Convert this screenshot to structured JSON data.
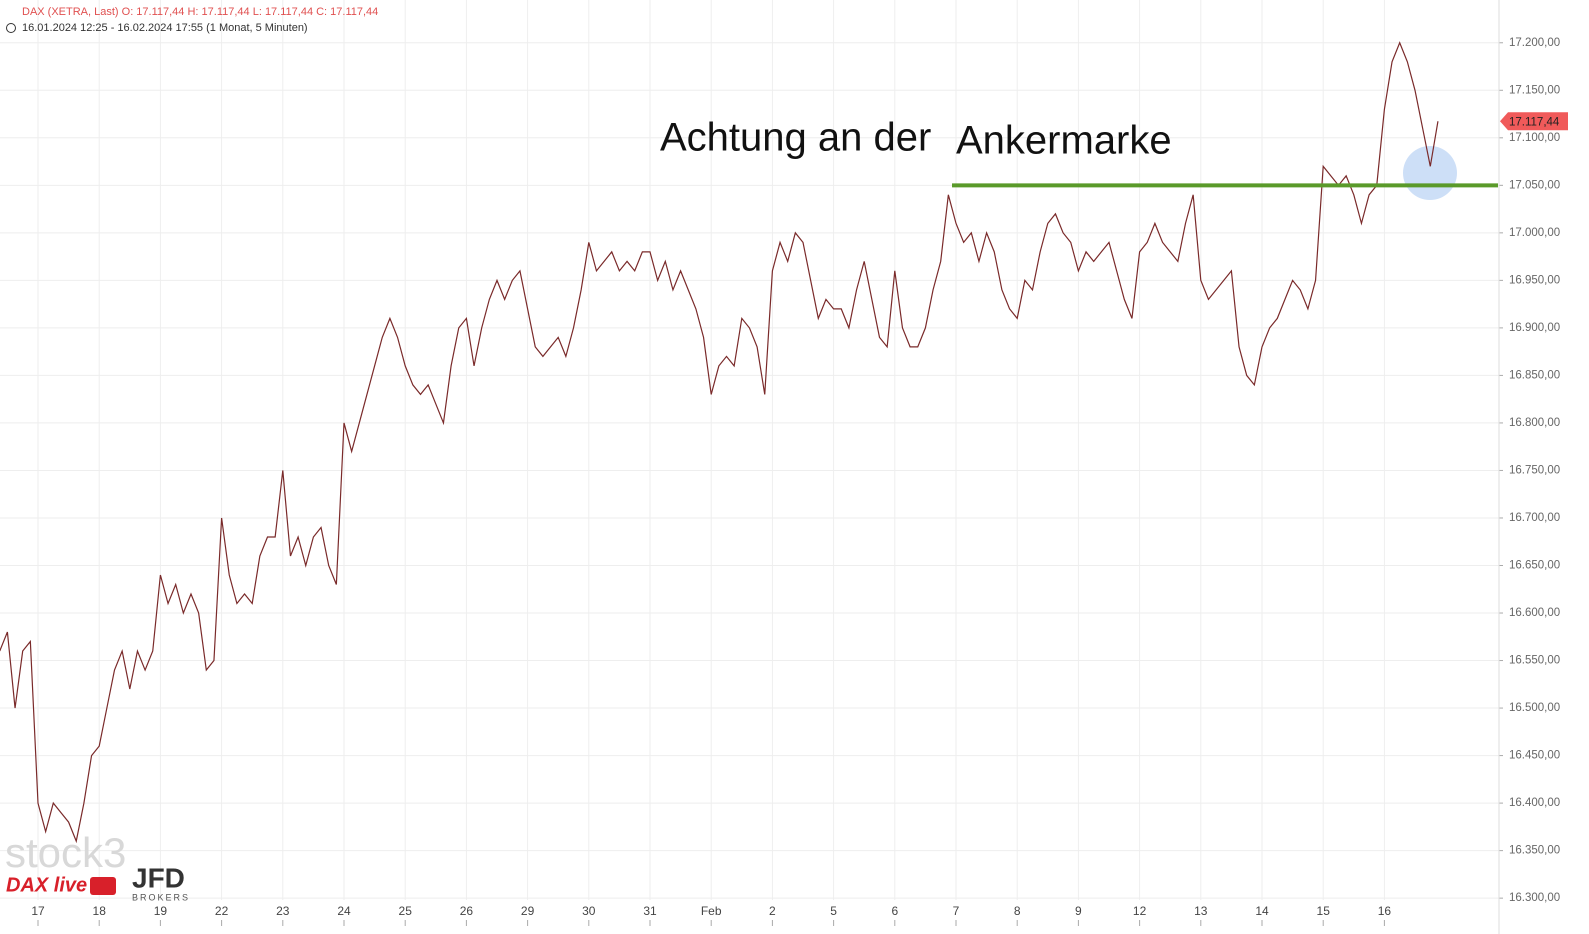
{
  "chart_data": {
    "type": "line",
    "title": "DAX (XETRA, Last)  O: 17.117,44  H: 17.117,44  L: 17.117,44  C: 17.117,44",
    "subtitle": "16.01.2024 12:25 - 16.02.2024 17:55   (1 Monat, 5 Minuten)",
    "categories": [
      null,
      null,
      null,
      null,
      null,
      "17",
      null,
      null,
      null,
      null,
      null,
      null,
      null,
      "18",
      null,
      null,
      null,
      null,
      null,
      null,
      null,
      "19",
      null,
      null,
      null,
      null,
      null,
      null,
      null,
      "22",
      null,
      null,
      null,
      null,
      null,
      null,
      null,
      "23",
      null,
      null,
      null,
      null,
      null,
      null,
      null,
      "24",
      null,
      null,
      null,
      null,
      null,
      null,
      null,
      "25",
      null,
      null,
      null,
      null,
      null,
      null,
      null,
      "26",
      null,
      null,
      null,
      null,
      null,
      null,
      null,
      "29",
      null,
      null,
      null,
      null,
      null,
      null,
      null,
      "30",
      null,
      null,
      null,
      null,
      null,
      null,
      null,
      "31",
      null,
      null,
      null,
      null,
      null,
      null,
      null,
      "Feb",
      null,
      null,
      null,
      null,
      null,
      null,
      null,
      "2",
      null,
      null,
      null,
      null,
      null,
      null,
      null,
      "5",
      null,
      null,
      null,
      null,
      null,
      null,
      null,
      "6",
      null,
      null,
      null,
      null,
      null,
      null,
      null,
      "7",
      null,
      null,
      null,
      null,
      null,
      null,
      null,
      "8",
      null,
      null,
      null,
      null,
      null,
      null,
      null,
      "9",
      null,
      null,
      null,
      null,
      null,
      null,
      null,
      "12",
      null,
      null,
      null,
      null,
      null,
      null,
      null,
      "13",
      null,
      null,
      null,
      null,
      null,
      null,
      null,
      "14",
      null,
      null,
      null,
      null,
      null,
      null,
      null,
      "15",
      null,
      null,
      null,
      null,
      null,
      null,
      null,
      "16",
      null,
      null,
      null,
      null,
      null,
      null,
      null
    ],
    "series": [
      {
        "name": "DAX",
        "color": "#7a2a2a",
        "values": [
          16560,
          16580,
          16500,
          16560,
          16570,
          16400,
          16370,
          16400,
          16390,
          16380,
          16360,
          16400,
          16450,
          16460,
          16500,
          16540,
          16560,
          16520,
          16560,
          16540,
          16560,
          16640,
          16610,
          16630,
          16600,
          16620,
          16600,
          16540,
          16550,
          16700,
          16640,
          16610,
          16620,
          16610,
          16660,
          16680,
          16680,
          16750,
          16660,
          16680,
          16650,
          16680,
          16690,
          16650,
          16630,
          16800,
          16770,
          16800,
          16830,
          16860,
          16890,
          16910,
          16890,
          16860,
          16840,
          16830,
          16840,
          16820,
          16800,
          16860,
          16900,
          16910,
          16860,
          16900,
          16930,
          16950,
          16930,
          16950,
          16960,
          16920,
          16880,
          16870,
          16880,
          16890,
          16870,
          16900,
          16940,
          16990,
          16960,
          16970,
          16980,
          16960,
          16970,
          16960,
          16980,
          16980,
          16950,
          16970,
          16940,
          16960,
          16940,
          16920,
          16890,
          16830,
          16860,
          16870,
          16860,
          16910,
          16900,
          16880,
          16830,
          16960,
          16990,
          16970,
          17000,
          16990,
          16950,
          16910,
          16930,
          16920,
          16920,
          16900,
          16940,
          16970,
          16930,
          16890,
          16880,
          16960,
          16900,
          16880,
          16880,
          16900,
          16940,
          16970,
          17040,
          17010,
          16990,
          17000,
          16970,
          17000,
          16980,
          16940,
          16920,
          16910,
          16950,
          16940,
          16980,
          17010,
          17020,
          17000,
          16990,
          16960,
          16980,
          16970,
          16980,
          16990,
          16960,
          16930,
          16910,
          16980,
          16990,
          17010,
          16990,
          16980,
          16970,
          17010,
          17040,
          16950,
          16930,
          16940,
          16950,
          16960,
          16880,
          16850,
          16840,
          16880,
          16900,
          16910,
          16930,
          16950,
          16940,
          16920,
          16950,
          17070,
          17060,
          17050,
          17060,
          17040,
          17010,
          17040,
          17050,
          17130,
          17180,
          17200,
          17180,
          17150,
          17110,
          17070,
          17117.44
        ]
      }
    ],
    "ylim": [
      16277,
      17245
    ],
    "yticks": [
      {
        "value": 16300,
        "label": "16.300,00"
      },
      {
        "value": 16350,
        "label": "16.350,00"
      },
      {
        "value": 16400,
        "label": "16.400,00"
      },
      {
        "value": 16450,
        "label": "16.450,00"
      },
      {
        "value": 16500,
        "label": "16.500,00"
      },
      {
        "value": 16550,
        "label": "16.550,00"
      },
      {
        "value": 16600,
        "label": "16.600,00"
      },
      {
        "value": 16650,
        "label": "16.650,00"
      },
      {
        "value": 16700,
        "label": "16.700,00"
      },
      {
        "value": 16750,
        "label": "16.750,00"
      },
      {
        "value": 16800,
        "label": "16.800,00"
      },
      {
        "value": 16850,
        "label": "16.850,00"
      },
      {
        "value": 16900,
        "label": "16.900,00"
      },
      {
        "value": 16950,
        "label": "16.950,00"
      },
      {
        "value": 17000,
        "label": "17.000,00"
      },
      {
        "value": 17050,
        "label": "17.050,00"
      },
      {
        "value": 17100,
        "label": "17.100,00"
      },
      {
        "value": 17150,
        "label": "17.150,00"
      },
      {
        "value": 17200,
        "label": "17.200,00"
      }
    ],
    "y_axis_side": "right",
    "grid": true,
    "last_price": {
      "value": 17117.44,
      "label": "17.117,44",
      "color": "#f05a5a"
    },
    "level_line": {
      "value": 17050,
      "color": "#5a9a2a"
    },
    "annotations": [
      "Achtung an der",
      "Ankermarke"
    ],
    "branding": [
      "stock3",
      "DAX live",
      "JFD",
      "BROKERS"
    ]
  }
}
